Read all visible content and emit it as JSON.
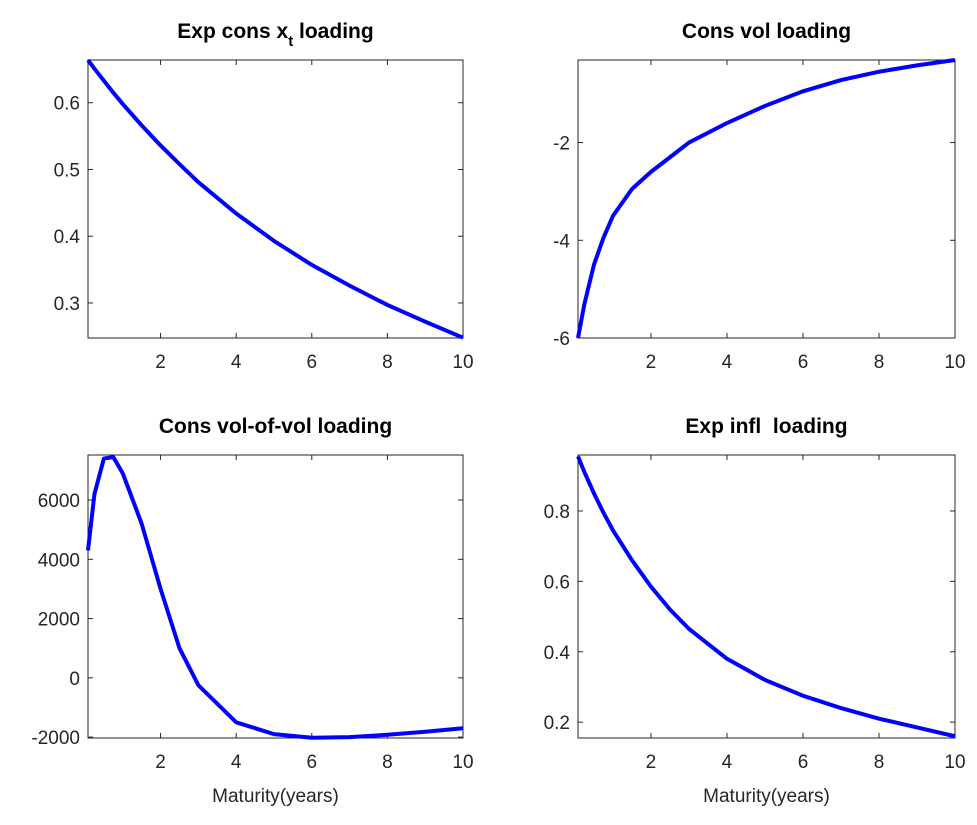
{
  "chart_data": [
    {
      "type": "line",
      "title_parts": [
        "Exp cons x",
        "t",
        " loading"
      ],
      "x": [
        0.08,
        0.25,
        0.5,
        0.75,
        1,
        1.5,
        2,
        2.5,
        3,
        4,
        5,
        6,
        7,
        8,
        9,
        10
      ],
      "values": [
        0.664,
        0.651,
        0.633,
        0.615,
        0.598,
        0.566,
        0.536,
        0.508,
        0.481,
        0.434,
        0.393,
        0.357,
        0.326,
        0.297,
        0.272,
        0.248
      ],
      "color": "#0000ff",
      "xlim": [
        0.08,
        10
      ],
      "xticks": [
        2,
        4,
        6,
        8,
        10
      ],
      "ylim": [
        0.2475,
        0.664
      ],
      "yticks": [
        0.3,
        0.4,
        0.5,
        0.6
      ]
    },
    {
      "type": "line",
      "title_parts": [
        "Cons vol loading"
      ],
      "x": [
        0.08,
        0.25,
        0.5,
        0.75,
        1,
        1.5,
        2,
        2.5,
        3,
        4,
        5,
        6,
        7,
        8,
        9,
        10
      ],
      "values": [
        -6,
        -5.3,
        -4.5,
        -3.95,
        -3.5,
        -2.95,
        -2.6,
        -2.3,
        -2.0,
        -1.6,
        -1.25,
        -0.95,
        -0.72,
        -0.55,
        -0.42,
        -0.31
      ],
      "color": "#0000ff",
      "xlim": [
        0.08,
        10
      ],
      "xticks": [
        2,
        4,
        6,
        8,
        10
      ],
      "ylim": [
        -6,
        -0.31
      ],
      "yticks": [
        -6,
        -4,
        -2
      ]
    },
    {
      "type": "line",
      "title_parts": [
        "Cons vol-of-vol loading"
      ],
      "xlabel": "Maturity(years)",
      "x": [
        0.08,
        0.25,
        0.5,
        0.75,
        1,
        1.5,
        2,
        2.5,
        3,
        4,
        5,
        6,
        7,
        8,
        9,
        10
      ],
      "values": [
        4300,
        6200,
        7400,
        7450,
        6900,
        5200,
        3000,
        1000,
        -250,
        -1500,
        -1900,
        -2020,
        -2000,
        -1920,
        -1820,
        -1700
      ],
      "color": "#0000ff",
      "xlim": [
        0.08,
        10
      ],
      "xticks": [
        2,
        4,
        6,
        8,
        10
      ],
      "ylim": [
        -2030,
        7520
      ],
      "yticks": [
        -2000,
        0,
        2000,
        4000,
        6000
      ]
    },
    {
      "type": "line",
      "title_parts": [
        "Exp infl  loading"
      ],
      "xlabel": "Maturity(years)",
      "x": [
        0.08,
        0.25,
        0.5,
        0.75,
        1,
        1.5,
        2,
        2.5,
        3,
        4,
        5,
        6,
        7,
        8,
        9,
        10
      ],
      "values": [
        0.955,
        0.91,
        0.85,
        0.795,
        0.745,
        0.66,
        0.585,
        0.52,
        0.465,
        0.38,
        0.32,
        0.275,
        0.24,
        0.21,
        0.185,
        0.16
      ],
      "color": "#0000ff",
      "xlim": [
        0.08,
        10
      ],
      "xticks": [
        2,
        4,
        6,
        8,
        10
      ],
      "ylim": [
        0.155,
        0.959
      ],
      "yticks": [
        0.2,
        0.4,
        0.6,
        0.8
      ]
    }
  ]
}
